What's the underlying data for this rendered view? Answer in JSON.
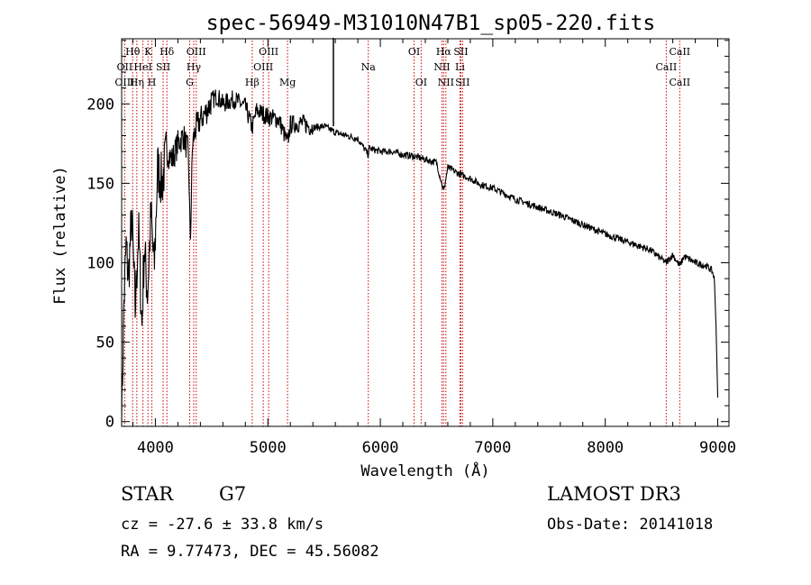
{
  "chart_data": {
    "type": "line",
    "title": "spec-56949-M31010N47B1_sp05-220.fits",
    "xlabel": "Wavelength (Å)",
    "ylabel": "Flux (relative)",
    "xlim": [
      3700,
      9100
    ],
    "ylim": [
      -3,
      241
    ],
    "xticks": [
      4000,
      5000,
      6000,
      7000,
      8000,
      9000
    ],
    "yticks": [
      0,
      50,
      100,
      150,
      200
    ],
    "grid": false,
    "spectrum_anchors": {
      "x": [
        3700,
        3720,
        3740,
        3760,
        3790,
        3820,
        3850,
        3880,
        3900,
        3930,
        3960,
        3990,
        4020,
        4060,
        4100,
        4150,
        4200,
        4250,
        4290,
        4300,
        4310,
        4330,
        4360,
        4400,
        4450,
        4500,
        4550,
        4600,
        4700,
        4800,
        4861,
        4900,
        5000,
        5100,
        5175,
        5200,
        5300,
        5400,
        5500,
        5600,
        5700,
        5800,
        5893,
        5900,
        6000,
        6100,
        6200,
        6300,
        6400,
        6500,
        6563,
        6600,
        6700,
        6800,
        6900,
        7000,
        7200,
        7400,
        7600,
        7800,
        8000,
        8200,
        8400,
        8542,
        8600,
        8662,
        8700,
        8800,
        8900,
        8950,
        8970,
        8985,
        9000
      ],
      "y": [
        0,
        75,
        110,
        90,
        130,
        70,
        120,
        60,
        110,
        80,
        130,
        95,
        160,
        150,
        170,
        165,
        175,
        180,
        170,
        150,
        110,
        175,
        185,
        190,
        195,
        202,
        205,
        200,
        203,
        198,
        185,
        196,
        192,
        190,
        175,
        187,
        188,
        185,
        186,
        182,
        180,
        178,
        168,
        172,
        170,
        170,
        168,
        167,
        165,
        163,
        145,
        160,
        156,
        153,
        149,
        147,
        140,
        135,
        130,
        124,
        118,
        113,
        108,
        100,
        105,
        98,
        104,
        100,
        98,
        95,
        90,
        60,
        15
      ]
    },
    "emission_lines": [
      {
        "label": "Hθ",
        "wavelength": 3798,
        "row": 1
      },
      {
        "label": "OII",
        "wavelength": 3727,
        "row": 2
      },
      {
        "label": "OIII",
        "wavelength": 3727,
        "row": 3
      },
      {
        "label": "HeI",
        "wavelength": 3889,
        "row": 2
      },
      {
        "label": "Hη",
        "wavelength": 3835,
        "row": 3
      },
      {
        "label": "K",
        "wavelength": 3934,
        "row": 1
      },
      {
        "label": "H",
        "wavelength": 3969,
        "row": 3
      },
      {
        "label": "SII",
        "wavelength": 4069,
        "row": 2
      },
      {
        "label": "Hδ",
        "wavelength": 4102,
        "row": 1
      },
      {
        "label": "OIII",
        "wavelength": 4363,
        "row": 1
      },
      {
        "label": "Hγ",
        "wavelength": 4341,
        "row": 2
      },
      {
        "label": "G",
        "wavelength": 4305,
        "row": 3
      },
      {
        "label": "Hβ",
        "wavelength": 4861,
        "row": 3
      },
      {
        "label": "OIII",
        "wavelength": 5007,
        "row": 1
      },
      {
        "label": "OIII",
        "wavelength": 4959,
        "row": 2
      },
      {
        "label": "Mg",
        "wavelength": 5175,
        "row": 3
      },
      {
        "label": "Na",
        "wavelength": 5893,
        "row": 2
      },
      {
        "label": "OI",
        "wavelength": 6300,
        "row": 1
      },
      {
        "label": "OI",
        "wavelength": 6363,
        "row": 3
      },
      {
        "label": "Hα",
        "wavelength": 6563,
        "row": 1
      },
      {
        "label": "NII",
        "wavelength": 6548,
        "row": 2
      },
      {
        "label": "NII",
        "wavelength": 6583,
        "row": 3
      },
      {
        "label": "SII",
        "wavelength": 6716,
        "row": 1
      },
      {
        "label": "Li",
        "wavelength": 6708,
        "row": 2
      },
      {
        "label": "SII",
        "wavelength": 6731,
        "row": 3
      },
      {
        "label": "CaII",
        "wavelength": 8662,
        "row": 1
      },
      {
        "label": "CaII",
        "wavelength": 8542,
        "row": 2
      },
      {
        "label": "CaII",
        "wavelength": 8662,
        "row": 3
      }
    ]
  },
  "info": {
    "object_class": "STAR",
    "subclass": "G7",
    "survey": "LAMOST DR3",
    "redshift_text": "cz = -27.6 ± 33.8 km/s",
    "obs_date": "Obs-Date: 20141018",
    "coords": "RA =   9.77473, DEC =  45.56082"
  }
}
